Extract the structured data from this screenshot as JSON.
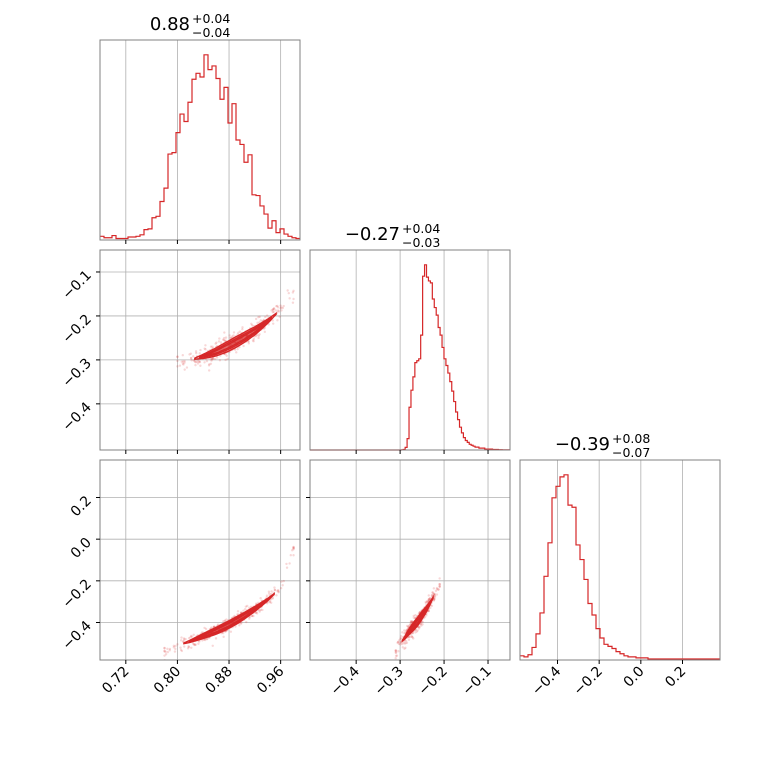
{
  "chart_data": {
    "type": "corner",
    "color": "#d62728",
    "grid": true,
    "titles": [
      {
        "value": "0.88",
        "plus": "+0.04",
        "minus": "−0.04"
      },
      {
        "value": "−0.27",
        "plus": "+0.04",
        "minus": "−0.03"
      },
      {
        "value": "−0.39",
        "plus": "+0.08",
        "minus": "−0.07"
      }
    ],
    "params": [
      {
        "range": [
          0.68,
          0.99
        ],
        "ticks": [
          0.72,
          0.8,
          0.88,
          0.96
        ],
        "tick_labels": [
          "0.72",
          "0.80",
          "0.88",
          "0.96"
        ],
        "median": 0.88
      },
      {
        "range": [
          -0.505,
          -0.05
        ],
        "ticks": [
          -0.4,
          -0.3,
          -0.2,
          -0.1
        ],
        "tick_labels": [
          "−0.4",
          "−0.3",
          "−0.2",
          "−0.1"
        ],
        "median": -0.27
      },
      {
        "range": [
          -0.58,
          0.38
        ],
        "ticks": [
          -0.4,
          -0.2,
          0.0,
          0.2
        ],
        "tick_labels": [
          "−0.4",
          "−0.2",
          "0.0",
          "0.2"
        ],
        "median": -0.39
      }
    ],
    "histograms": [
      {
        "param": 0,
        "bin_start": 0.68,
        "bin_end": 0.99,
        "counts": [
          0.5,
          0.3,
          0.3,
          0.6,
          0.2,
          0.2,
          0.2,
          0.4,
          0.4,
          0.5,
          0.7,
          1.4,
          1.5,
          3,
          3.2,
          5.2,
          7,
          11.6,
          11.8,
          14.5,
          17,
          16,
          18.6,
          21.7,
          22.5,
          22,
          25,
          23,
          23.5,
          21.8,
          19,
          20.6,
          15.8,
          18.4,
          13.5,
          12.9,
          10.5,
          11.5,
          6.1,
          6,
          4.6,
          3.5,
          1.6,
          2.6,
          1,
          1.5,
          0.8,
          0.5,
          0.3,
          0.2
        ]
      },
      {
        "param": 1,
        "bin_start": -0.505,
        "bin_end": -0.05,
        "counts": [
          0,
          0,
          0,
          0,
          0,
          0,
          0,
          0,
          0,
          0,
          0,
          0,
          0,
          0,
          0,
          0,
          0,
          0,
          0,
          0,
          0,
          0,
          0,
          0,
          0,
          0,
          0,
          0,
          0,
          0,
          0,
          0,
          0,
          0,
          0,
          0,
          0,
          0,
          0,
          0,
          0,
          0,
          0,
          0,
          0,
          0,
          0,
          0.2,
          0.5,
          2.8,
          12,
          45,
          63,
          77,
          92,
          94,
          96,
          121,
          183,
          195,
          182,
          178,
          176,
          159,
          150,
          142,
          129,
          121,
          108,
          96,
          89,
          81,
          72,
          62,
          51,
          40,
          32,
          24,
          18,
          13,
          10,
          8,
          6,
          5,
          4,
          3,
          3,
          2,
          2,
          2,
          1,
          1,
          1,
          1,
          0.5,
          0.5,
          0.5,
          0.3,
          0.3,
          0.2,
          0.2,
          0.1,
          0.1
        ]
      },
      {
        "param": 2,
        "bin_start": -0.58,
        "bin_end": 0.38,
        "counts": [
          4,
          3,
          5,
          12,
          25,
          45,
          80,
          112,
          155,
          166,
          175,
          177,
          148,
          146,
          110,
          96,
          77,
          54,
          43,
          30,
          21,
          15,
          13,
          11,
          8,
          6,
          4,
          3,
          3,
          2,
          2,
          2,
          1,
          1,
          1,
          1,
          1,
          1,
          1,
          1,
          1,
          1,
          1,
          1,
          1,
          1,
          1,
          1,
          1,
          1
        ]
      }
    ],
    "scatter_panels": [
      {
        "x_param": 0,
        "y_param": 1,
        "curve_x": [
          0.8,
          0.82,
          0.84,
          0.86,
          0.88,
          0.9,
          0.92,
          0.94,
          0.96,
          0.98
        ],
        "curve_y": [
          -0.305,
          -0.3,
          -0.292,
          -0.282,
          -0.268,
          -0.252,
          -0.234,
          -0.212,
          -0.186,
          -0.14
        ],
        "contour_halfwidth": 0.012
      },
      {
        "x_param": 0,
        "y_param": 2,
        "curve_x": [
          0.78,
          0.8,
          0.82,
          0.84,
          0.86,
          0.88,
          0.9,
          0.92,
          0.94,
          0.96,
          0.98
        ],
        "curve_y": [
          -0.54,
          -0.51,
          -0.49,
          -0.465,
          -0.44,
          -0.41,
          -0.375,
          -0.335,
          -0.29,
          -0.235,
          -0.05
        ],
        "contour_halfwidth": 0.018
      },
      {
        "x_param": 1,
        "y_param": 2,
        "curve_x": [
          -0.31,
          -0.3,
          -0.29,
          -0.28,
          -0.27,
          -0.26,
          -0.25,
          -0.24,
          -0.23,
          -0.22,
          -0.21
        ],
        "curve_y": [
          -0.54,
          -0.5,
          -0.475,
          -0.445,
          -0.42,
          -0.395,
          -0.365,
          -0.335,
          -0.3,
          -0.26,
          -0.21
        ],
        "contour_halfwidth": 0.02
      }
    ]
  }
}
